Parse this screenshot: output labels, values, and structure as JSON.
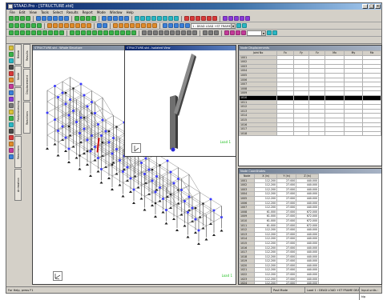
{
  "app": {
    "title": "STAAD.Pro - [STRUCTURE.std]"
  },
  "menu": [
    "File",
    "Edit",
    "View",
    "Tools",
    "Select",
    "Results",
    "Report",
    "Mode",
    "Window",
    "Help"
  ],
  "toolbar": {
    "load_combo": "1 : DEAD LOAD +ST FRAME DEAD L",
    "zoom_combo": ""
  },
  "page_tabs": [
    "Beam",
    "Node",
    "Postprocessing",
    "Reactions",
    "Animation"
  ],
  "sub_tabs": [
    "Results",
    "Displacement",
    "Reactions"
  ],
  "windows": {
    "main_view": {
      "title": "STRUCTURE.std - Whole Structure",
      "load_label": "Load 1"
    },
    "detail_view": {
      "title": "STRUCTURE.std - Isolated View",
      "load_label": "Load 1"
    },
    "table_top": {
      "title": "Node Displacements",
      "headers": [
        "Joint No",
        "Fx",
        "Fy",
        "Fz",
        "Mx",
        "My",
        "Mz"
      ],
      "row_labels": [
        "1001",
        "1002",
        "1003",
        "1004",
        "1005",
        "1006",
        "1007",
        "1008",
        "1009",
        "1010",
        "1011",
        "1012",
        "1013",
        "1014",
        "1015",
        "1016",
        "1017",
        "1018"
      ],
      "selected_row": 9
    },
    "table_bottom": {
      "title": "Node Coordinates",
      "headers": [
        "Node",
        "X (in)",
        "Y (in)",
        "Z (in)"
      ],
      "rows": [
        [
          "1001",
          "112.200",
          "27.000",
          "440.000"
        ],
        [
          "1002",
          "112.200",
          "27.000",
          "440.000"
        ],
        [
          "1003",
          "112.200",
          "27.000",
          "440.000"
        ],
        [
          "1004",
          "112.200",
          "27.000",
          "440.000"
        ],
        [
          "1005",
          "112.200",
          "27.000",
          "440.000"
        ],
        [
          "1006",
          "112.200",
          "27.000",
          "440.000"
        ],
        [
          "1007",
          "112.200",
          "27.000",
          "440.000"
        ],
        [
          "1008",
          "61.000",
          "27.000",
          "672.000"
        ],
        [
          "1009",
          "61.000",
          "27.000",
          "672.000"
        ],
        [
          "1010",
          "61.000",
          "27.000",
          "672.000"
        ],
        [
          "1011",
          "61.000",
          "27.000",
          "672.000"
        ],
        [
          "1012",
          "112.200",
          "27.000",
          "440.000"
        ],
        [
          "1013",
          "112.200",
          "27.000",
          "440.000"
        ],
        [
          "1014",
          "112.200",
          "27.000",
          "440.000"
        ],
        [
          "1015",
          "112.200",
          "27.000",
          "440.000"
        ],
        [
          "1016",
          "112.200",
          "27.000",
          "440.000"
        ],
        [
          "1017",
          "112.200",
          "27.000",
          "440.000"
        ],
        [
          "1018",
          "112.200",
          "27.000",
          "440.000"
        ],
        [
          "1019",
          "112.200",
          "27.000",
          "440.000"
        ],
        [
          "1020",
          "112.200",
          "27.000",
          "440.000"
        ],
        [
          "1021",
          "112.200",
          "27.000",
          "440.000"
        ],
        [
          "1022",
          "112.200",
          "27.000",
          "440.000"
        ],
        [
          "1023",
          "112.200",
          "27.000",
          "440.000"
        ],
        [
          "1024",
          "112.200",
          "27.000",
          "440.000"
        ],
        [
          "1025",
          "112.200",
          "27.000",
          "440.000"
        ],
        [
          "1026",
          "112.200",
          "27.000",
          "440.000"
        ]
      ]
    }
  },
  "status": {
    "help": "For Help, press F1",
    "mode": "Post Mode",
    "load": "Load 1 : DEAD LOAD +ST FRAME DEA",
    "units": "Input units : kip"
  },
  "colors": {
    "title_active": "#0a246a",
    "load_label": "#1fbf1f",
    "member_highlight": "#cc1111",
    "support_blue": "#3a3aff"
  }
}
